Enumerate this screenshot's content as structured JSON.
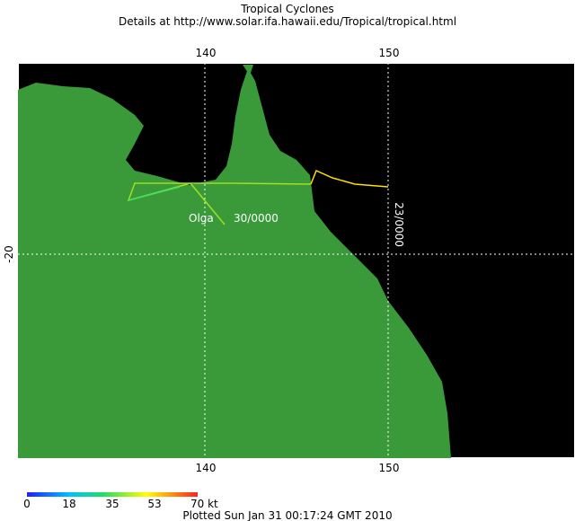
{
  "header": {
    "title": "Tropical Cyclones",
    "subtitle": "Details at http://www.solar.ifa.hawaii.edu/Tropical/tropical.html"
  },
  "map": {
    "lon_labels_top": [
      "140",
      "150"
    ],
    "lon_labels_bottom": [
      "140",
      "150"
    ],
    "lat_labels": [
      "-20"
    ]
  },
  "storm": {
    "name": "Olga",
    "time_label": "30/0000",
    "start_label": "23/0000"
  },
  "colorbar": {
    "labels": [
      "0",
      "18",
      "35",
      "53",
      "70 kt"
    ]
  },
  "footer": {
    "text": "Plotted Sun Jan 31 00:17:24 GMT 2010"
  }
}
